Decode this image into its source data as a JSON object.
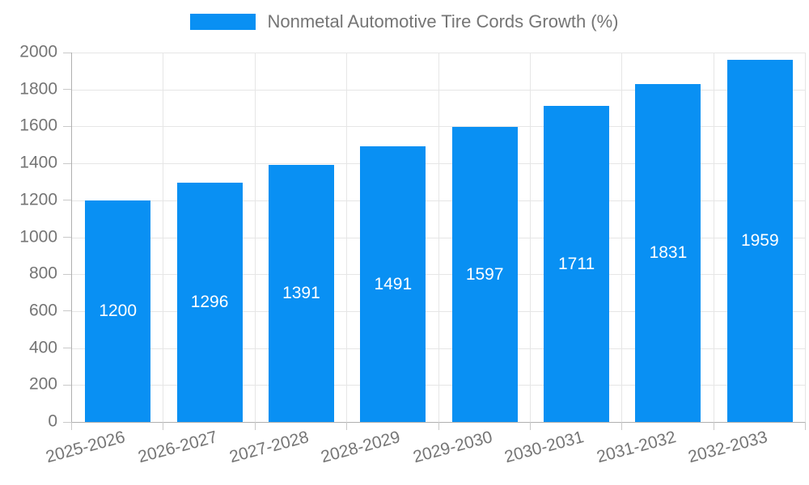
{
  "chart_data": {
    "type": "bar",
    "title": "Nonmetal Automotive Tire Cords Growth (%)",
    "categories": [
      "2025-2026",
      "2026-2027",
      "2027-2028",
      "2028-2029",
      "2029-2030",
      "2030-2031",
      "2031-2032",
      "2032-2033"
    ],
    "series": [
      {
        "name": "Nonmetal Automotive Tire Cords Growth (%)",
        "values": [
          1200,
          1296,
          1391,
          1491,
          1597,
          1711,
          1831,
          1959
        ]
      }
    ],
    "xlabel": "",
    "ylabel": "",
    "ylim": [
      0,
      2000
    ],
    "ytick_step": 200,
    "ytick_labels": [
      "0",
      "200",
      "400",
      "600",
      "800",
      "1000",
      "1200",
      "1400",
      "1600",
      "1800",
      "2000"
    ],
    "grid": "horizontal and vertical gridlines on",
    "legend_position": "top-center",
    "bar_labels": "values shown in white, centered inside bars",
    "x_label_rotation_deg": -15
  },
  "legend": {
    "label": "Nonmetal Automotive Tire Cords Growth (%)"
  },
  "colors": {
    "bar": "#0990f3",
    "grid": "#e6e6e6",
    "axis": "#b0b0b0",
    "tick": "#c9c9c9",
    "text": "#757575",
    "bar_label": "#ffffff",
    "background": "#ffffff"
  }
}
